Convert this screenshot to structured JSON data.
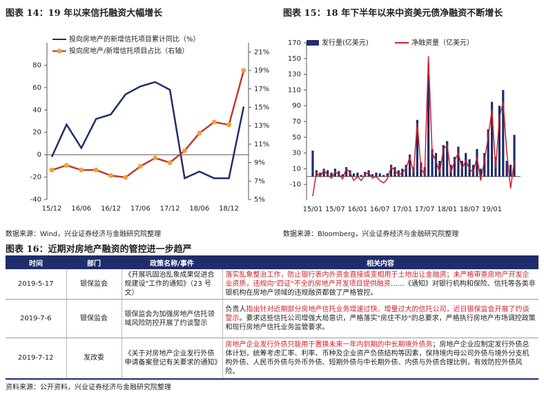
{
  "chart_data": [
    {
      "type": "line",
      "title": "图表 14：19 年以来信托融资大幅增长",
      "source": "数据来源：Wind，兴业证券经济与金融研究院整理",
      "categories": [
        "15/12",
        null,
        "16/06",
        null,
        "16/12",
        null,
        "17/06",
        null,
        "17/12",
        null,
        "18/06",
        null,
        "18/12",
        null
      ],
      "series": [
        {
          "name": "投向房地产的新增信托项目累计同比（%）",
          "color": "#1f2d6b",
          "values": [
            -2,
            27,
            6,
            32,
            36,
            54,
            61,
            65,
            58,
            -21,
            -15,
            -21,
            -21,
            43
          ]
        },
        {
          "name": "投向房地产/新增信托项目占比（右轴）",
          "color": "#c0392b",
          "axis": "y2",
          "marker": "circle",
          "marker_color": "#f0a040",
          "values": [
            8.2,
            8.7,
            8.2,
            8.2,
            7.6,
            7.4,
            8.6,
            9.5,
            9.0,
            10.3,
            12.2,
            13.4,
            13.1,
            19.0
          ]
        }
      ],
      "ylim": [
        -40,
        100
      ],
      "yticks": [
        -40,
        -20,
        0,
        20,
        40,
        60,
        80
      ],
      "y2lim": [
        5,
        22
      ],
      "y2ticks": [
        {
          "value": 5,
          "label": "5%"
        },
        {
          "value": 7,
          "label": "7%"
        },
        {
          "value": 9,
          "label": "9%"
        },
        {
          "value": 11,
          "label": "11%"
        },
        {
          "value": 13,
          "label": "13%"
        },
        {
          "value": 15,
          "label": "15%"
        },
        {
          "value": 17,
          "label": "17%"
        },
        {
          "value": 19,
          "label": "19%"
        },
        {
          "value": 21,
          "label": "21%"
        }
      ],
      "grid": false,
      "legend": "top-left"
    },
    {
      "type": "bar",
      "title": "图表 15：18 年下半年以来中资美元债净融资不断增长",
      "source": "数据来源：Bloomberg，兴业证券经济与金融研究院整理",
      "categories": [
        "15/01",
        null,
        null,
        null,
        null,
        null,
        "15/07",
        null,
        null,
        null,
        null,
        null,
        "16/01",
        null,
        null,
        null,
        null,
        null,
        "16/07",
        null,
        null,
        null,
        null,
        null,
        "17/01",
        null,
        null,
        null,
        null,
        null,
        "17/07",
        null,
        null,
        null,
        null,
        null,
        "18/01",
        null,
        null,
        null,
        null,
        null,
        "18/07",
        null,
        null,
        null,
        null,
        null,
        "19/01",
        null,
        null,
        null,
        null,
        null,
        null
      ],
      "series": [
        {
          "name": "发行量(亿美元)",
          "color": "#1f2d6b",
          "values": [
            33,
            8,
            5,
            10,
            8,
            5,
            10,
            7,
            3,
            12,
            8,
            4,
            5,
            2,
            6,
            8,
            3,
            5,
            4,
            2,
            4,
            15,
            12,
            8,
            10,
            15,
            28,
            12,
            72,
            18,
            12,
            130,
            35,
            30,
            20,
            40,
            45,
            15,
            25,
            38,
            20,
            30,
            22,
            15,
            35,
            10,
            30,
            60,
            95,
            25,
            90,
            110,
            20,
            15,
            53
          ]
        },
        {
          "name": "净融资量（亿美元）",
          "color": "#d0202a",
          "type": "line",
          "values": [
            -25,
            5,
            0,
            8,
            2,
            -2,
            6,
            3,
            -3,
            10,
            5,
            -5,
            0,
            -5,
            3,
            5,
            -2,
            0,
            -5,
            -8,
            -3,
            12,
            8,
            2,
            5,
            10,
            25,
            5,
            68,
            10,
            3,
            153,
            30,
            20,
            5,
            35,
            40,
            5,
            20,
            30,
            10,
            20,
            10,
            5,
            25,
            -5,
            20,
            50,
            85,
            10,
            75,
            95,
            30,
            -15,
            20
          ]
        }
      ],
      "ylim": [
        -30,
        170
      ],
      "yticks": [
        -10,
        10,
        30,
        50,
        70,
        90,
        110,
        130,
        150,
        170
      ],
      "grid": false,
      "legend": "top-left"
    }
  ],
  "table_title": "图表 16：近期对房地产融资的管控进一步趋严",
  "table": {
    "header": [
      "时间",
      "部门",
      "政策名称/事件",
      "相关内容"
    ],
    "rows": [
      {
        "date": "2019-5-17",
        "dept": "银保监会",
        "policy": "《开展巩固治乱象成果促进合规建设\"工作的通知》（23 号文）",
        "content": [
          {
            "text": "落实乱象整治工作，防止银行表内外资金直接或变相用于土地出让金融资；未严格审查房地产开发企业资质，违规向\"四证\"不全的房地产开发项目提供融资",
            "color": "#d0202a"
          },
          {
            "text": "……《通知》对银行机构和保险、信托等各类非银机构在房地产领域的违规融资都做了严格管控。",
            "color": "#222222"
          }
        ]
      },
      {
        "date": "2019-7-6",
        "dept": "银保监会",
        "policy": "银保监会为加强房地产信托领域风险防控开展了约谈警示",
        "content": [
          {
            "text": "负责人",
            "color": "#222222"
          },
          {
            "text": "指出针对近期部分房地产信托业务增速过快、增量过大的信托公司，近日银保监会开展了约谈警示",
            "color": "#d0202a"
          },
          {
            "text": "。要求这些信托公司增强大局意识，严格落实\"房住不炒\"的总要求，严格执行房地产市场调控政策和现行房地产信托业务监管要求。",
            "color": "#222222"
          }
        ]
      },
      {
        "date": "2019-7-12",
        "dept": "发改委",
        "policy": "《关于对房地产企业发行外债申请备案登记有关要求的通知》",
        "content": [
          {
            "text": "房地产企业发行外债只能用于置换未来一年内到期的中长期境外债务",
            "color": "#d0202a"
          },
          {
            "text": "；房地产企业应制定发行外债总体计划，统筹考虑汇率、利率、币种及企业资产负债结构等因素，保持境内母公司外债与境外分支机构外债、人民币外债与外币外债、短期外债与中长期外债、内债与外债合理比例，有效防控外债风险。",
            "color": "#222222"
          }
        ]
      }
    ]
  },
  "table_source": "资料来源：公开资料，兴业证券经济与金融研究院整理"
}
